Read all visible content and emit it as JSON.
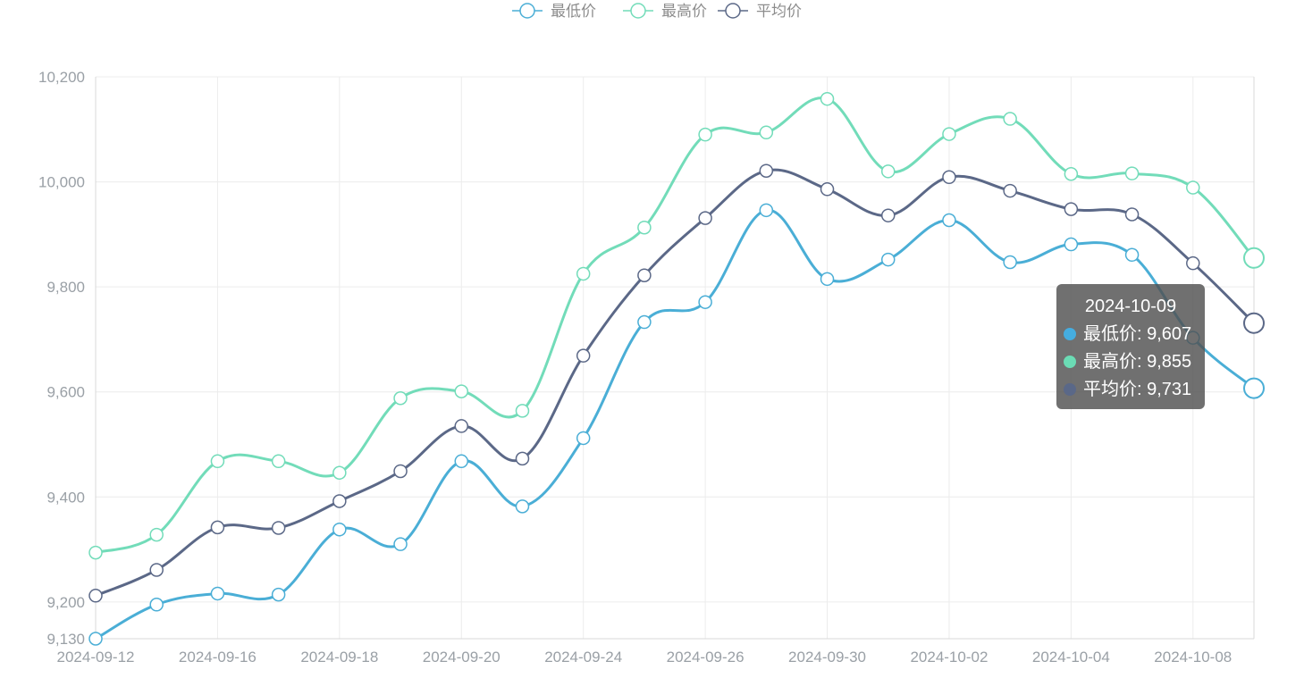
{
  "chart_data": {
    "type": "line",
    "x": [
      "2024-09-12",
      "2024-09-14",
      "2024-09-16",
      "2024-09-17",
      "2024-09-18",
      "2024-09-19",
      "2024-09-20",
      "2024-09-23",
      "2024-09-24",
      "2024-09-25",
      "2024-09-26",
      "2024-09-27",
      "2024-09-30",
      "2024-10-01",
      "2024-10-02",
      "2024-10-03",
      "2024-10-04",
      "2024-10-07",
      "2024-10-08",
      "2024-10-09"
    ],
    "x_tick_labels": [
      "2024-09-12",
      "2024-09-16",
      "2024-09-18",
      "2024-09-20",
      "2024-09-24",
      "2024-09-26",
      "2024-09-30",
      "2024-10-02",
      "2024-10-04",
      "2024-10-08"
    ],
    "y_tick_labels": [
      "9,130",
      "9,200",
      "9,400",
      "9,600",
      "9,800",
      "10,000",
      "10,200"
    ],
    "ylim": [
      9130,
      10200
    ],
    "grid": true,
    "legend_position": "top-center",
    "series": [
      {
        "name": "最低价",
        "color": "#4aaed6",
        "values": [
          9130,
          9195,
          9216,
          9214,
          9338,
          9310,
          9468,
          9382,
          9512,
          9733,
          9771,
          9946,
          9815,
          9852,
          9927,
          9847,
          9881,
          9861,
          9703,
          9607
        ]
      },
      {
        "name": "最高价",
        "color": "#72dcb9",
        "values": [
          9294,
          9328,
          9468,
          9468,
          9446,
          9588,
          9601,
          9564,
          9825,
          9913,
          10090,
          10094,
          10158,
          10020,
          10091,
          10120,
          10015,
          10016,
          9989,
          9855
        ]
      },
      {
        "name": "平均价",
        "color": "#5b6887",
        "values": [
          9212,
          9261,
          9342,
          9341,
          9392,
          9449,
          9535,
          9473,
          9669,
          9822,
          9931,
          10021,
          9986,
          9936,
          10009,
          9983,
          9948,
          9938,
          9845,
          9731
        ]
      }
    ],
    "tooltip": {
      "title": "2024-10-09",
      "rows": [
        {
          "label": "最低价: 9,607",
          "color": "#45ade0"
        },
        {
          "label": "最高价: 9,855",
          "color": "#6bdcb5"
        },
        {
          "label": "平均价: 9,731",
          "color": "#5a6888"
        }
      ]
    }
  }
}
